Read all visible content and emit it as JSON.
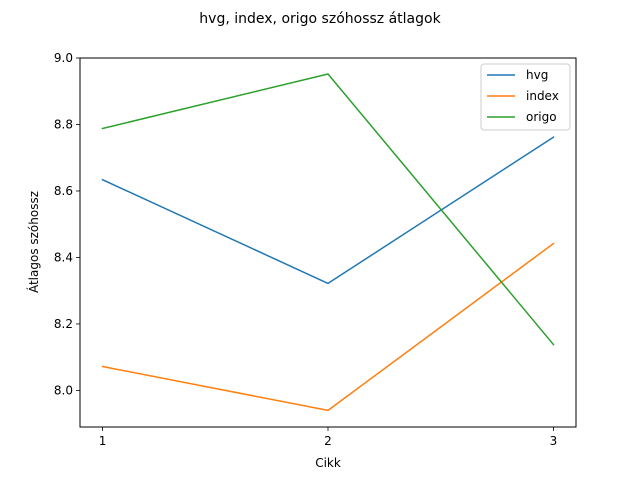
{
  "chart_data": {
    "type": "line",
    "title": "hvg, index, origo szóhossz átlagok",
    "xlabel": "Cikk",
    "ylabel": "Átlagos szóhossz",
    "x": [
      1,
      2,
      3
    ],
    "x_ticks": [
      "1",
      "2",
      "3"
    ],
    "xlim": [
      0.9,
      3.1
    ],
    "ylim": [
      7.89,
      9.0
    ],
    "y_ticks": [
      "8.0",
      "8.2",
      "8.4",
      "8.6",
      "8.8",
      "9.0"
    ],
    "y_tick_values": [
      8.0,
      8.2,
      8.4,
      8.6,
      8.8,
      9.0
    ],
    "grid": false,
    "legend_position": "top-right",
    "series": [
      {
        "name": "hvg",
        "color": "#1f77b4",
        "values": [
          8.634,
          8.322,
          8.762
        ]
      },
      {
        "name": "index",
        "color": "#ff7f0e",
        "values": [
          8.072,
          7.94,
          8.442
        ]
      },
      {
        "name": "origo",
        "color": "#2ca02c",
        "values": [
          8.788,
          8.952,
          8.138
        ]
      }
    ]
  }
}
